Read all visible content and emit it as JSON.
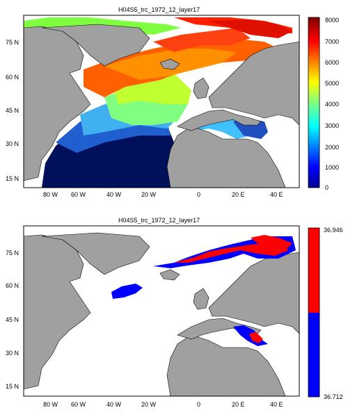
{
  "panels": [
    {
      "id": "top",
      "title": "H04S5_trc_1972_12_layer17",
      "lat_ticks": [
        "75 N",
        "60 N",
        "45 N",
        "30 N",
        "15 N"
      ],
      "lon_ticks": [
        "80 W",
        "60 W",
        "40 W",
        "20 W",
        "0",
        "20 E",
        "40 E"
      ],
      "colorbar": {
        "type": "continuous",
        "min": 0,
        "max": 8000,
        "tick_labels": [
          "0",
          "1000",
          "2000",
          "3000",
          "4000",
          "5000",
          "6000",
          "7000",
          "8000"
        ],
        "colormap": "jet"
      }
    },
    {
      "id": "bottom",
      "title": "H04S5_trc_1972_12_layer17",
      "lat_ticks": [
        "75 N",
        "60 N",
        "45 N",
        "30 N",
        "15 N"
      ],
      "lon_ticks": [
        "80 W",
        "60 W",
        "40 W",
        "20 W",
        "0",
        "20 E",
        "40 E"
      ],
      "colorbar": {
        "type": "binary",
        "top_label": "36.946",
        "bottom_label": "36.712",
        "colors": [
          "#ff0000",
          "#0000ff"
        ]
      }
    }
  ],
  "colors": {
    "land": "#a0a0a0",
    "ocean_blank": "#ffffff",
    "outline": "#000000"
  }
}
